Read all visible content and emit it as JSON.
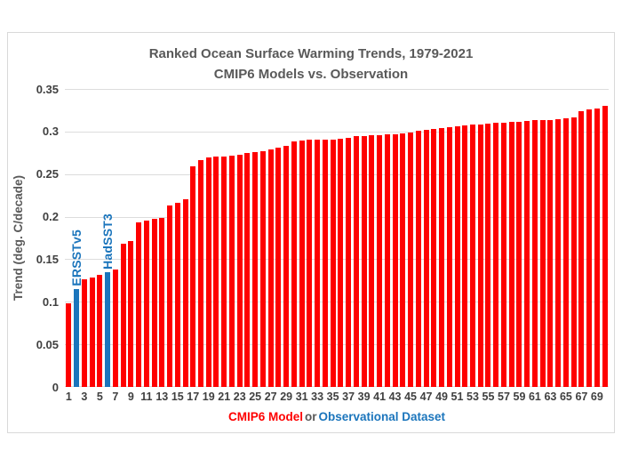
{
  "chart_data": {
    "type": "bar",
    "title": "Ranked Ocean Surface Warming Trends, 1979-2021",
    "subtitle": "CMIP6 Models vs. Observation",
    "ylabel": "Trend (deg. C/decade)",
    "xlabel": {
      "model_text": "CMIP6 Model",
      "connector_text": "or",
      "obs_text": "Observational Dataset"
    },
    "ylim": [
      0,
      0.35
    ],
    "yticks": [
      0,
      0.05,
      0.1,
      0.15,
      0.2,
      0.25,
      0.3,
      0.35
    ],
    "ytick_labels": [
      "0",
      "0.05",
      "0.1",
      "0.15",
      "0.2",
      "0.25",
      "0.3",
      "0.35"
    ],
    "xtick_labels": [
      "1",
      "3",
      "5",
      "7",
      "9",
      "11",
      "13",
      "15",
      "17",
      "19",
      "21",
      "23",
      "25",
      "27",
      "29",
      "31",
      "33",
      "35",
      "37",
      "39",
      "41",
      "43",
      "45",
      "47",
      "49",
      "51",
      "53",
      "55",
      "57",
      "59",
      "61",
      "63",
      "65",
      "67",
      "69"
    ],
    "grid": true,
    "legend_position": "none",
    "colors": {
      "model": "#fe0000",
      "observation": "#1b75bc",
      "gridline": "#dcdcdc",
      "title": "#595959",
      "ticks": "#404040",
      "connector": "#595959",
      "frame_border": "#d9d9d9"
    },
    "bars": [
      {
        "rank": 1,
        "value": 0.098,
        "kind": "model"
      },
      {
        "rank": 2,
        "value": 0.115,
        "kind": "observation",
        "label": "ERSSTv5"
      },
      {
        "rank": 3,
        "value": 0.126,
        "kind": "model"
      },
      {
        "rank": 4,
        "value": 0.129,
        "kind": "model"
      },
      {
        "rank": 5,
        "value": 0.132,
        "kind": "model"
      },
      {
        "rank": 6,
        "value": 0.135,
        "kind": "observation",
        "label": "HadSST3"
      },
      {
        "rank": 7,
        "value": 0.138,
        "kind": "model"
      },
      {
        "rank": 8,
        "value": 0.168,
        "kind": "model"
      },
      {
        "rank": 9,
        "value": 0.171,
        "kind": "model"
      },
      {
        "rank": 10,
        "value": 0.193,
        "kind": "model"
      },
      {
        "rank": 11,
        "value": 0.195,
        "kind": "model"
      },
      {
        "rank": 12,
        "value": 0.197,
        "kind": "model"
      },
      {
        "rank": 13,
        "value": 0.199,
        "kind": "model"
      },
      {
        "rank": 14,
        "value": 0.213,
        "kind": "model"
      },
      {
        "rank": 15,
        "value": 0.216,
        "kind": "model"
      },
      {
        "rank": 16,
        "value": 0.221,
        "kind": "model"
      },
      {
        "rank": 17,
        "value": 0.259,
        "kind": "model"
      },
      {
        "rank": 18,
        "value": 0.266,
        "kind": "model"
      },
      {
        "rank": 19,
        "value": 0.27,
        "kind": "model"
      },
      {
        "rank": 20,
        "value": 0.271,
        "kind": "model"
      },
      {
        "rank": 21,
        "value": 0.271,
        "kind": "model"
      },
      {
        "rank": 22,
        "value": 0.272,
        "kind": "model"
      },
      {
        "rank": 23,
        "value": 0.273,
        "kind": "model"
      },
      {
        "rank": 24,
        "value": 0.275,
        "kind": "model"
      },
      {
        "rank": 25,
        "value": 0.276,
        "kind": "model"
      },
      {
        "rank": 26,
        "value": 0.277,
        "kind": "model"
      },
      {
        "rank": 27,
        "value": 0.279,
        "kind": "model"
      },
      {
        "rank": 28,
        "value": 0.281,
        "kind": "model"
      },
      {
        "rank": 29,
        "value": 0.283,
        "kind": "model"
      },
      {
        "rank": 30,
        "value": 0.288,
        "kind": "model"
      },
      {
        "rank": 31,
        "value": 0.289,
        "kind": "model"
      },
      {
        "rank": 32,
        "value": 0.29,
        "kind": "model"
      },
      {
        "rank": 33,
        "value": 0.29,
        "kind": "model"
      },
      {
        "rank": 34,
        "value": 0.291,
        "kind": "model"
      },
      {
        "rank": 35,
        "value": 0.291,
        "kind": "model"
      },
      {
        "rank": 36,
        "value": 0.292,
        "kind": "model"
      },
      {
        "rank": 37,
        "value": 0.293,
        "kind": "model"
      },
      {
        "rank": 38,
        "value": 0.295,
        "kind": "model"
      },
      {
        "rank": 39,
        "value": 0.295,
        "kind": "model"
      },
      {
        "rank": 40,
        "value": 0.296,
        "kind": "model"
      },
      {
        "rank": 41,
        "value": 0.296,
        "kind": "model"
      },
      {
        "rank": 42,
        "value": 0.297,
        "kind": "model"
      },
      {
        "rank": 43,
        "value": 0.297,
        "kind": "model"
      },
      {
        "rank": 44,
        "value": 0.298,
        "kind": "model"
      },
      {
        "rank": 45,
        "value": 0.299,
        "kind": "model"
      },
      {
        "rank": 46,
        "value": 0.301,
        "kind": "model"
      },
      {
        "rank": 47,
        "value": 0.302,
        "kind": "model"
      },
      {
        "rank": 48,
        "value": 0.303,
        "kind": "model"
      },
      {
        "rank": 49,
        "value": 0.304,
        "kind": "model"
      },
      {
        "rank": 50,
        "value": 0.305,
        "kind": "model"
      },
      {
        "rank": 51,
        "value": 0.306,
        "kind": "model"
      },
      {
        "rank": 52,
        "value": 0.307,
        "kind": "model"
      },
      {
        "rank": 53,
        "value": 0.308,
        "kind": "model"
      },
      {
        "rank": 54,
        "value": 0.308,
        "kind": "model"
      },
      {
        "rank": 55,
        "value": 0.309,
        "kind": "model"
      },
      {
        "rank": 56,
        "value": 0.31,
        "kind": "model"
      },
      {
        "rank": 57,
        "value": 0.31,
        "kind": "model"
      },
      {
        "rank": 58,
        "value": 0.311,
        "kind": "model"
      },
      {
        "rank": 59,
        "value": 0.311,
        "kind": "model"
      },
      {
        "rank": 60,
        "value": 0.312,
        "kind": "model"
      },
      {
        "rank": 61,
        "value": 0.313,
        "kind": "model"
      },
      {
        "rank": 62,
        "value": 0.313,
        "kind": "model"
      },
      {
        "rank": 63,
        "value": 0.314,
        "kind": "model"
      },
      {
        "rank": 64,
        "value": 0.315,
        "kind": "model"
      },
      {
        "rank": 65,
        "value": 0.316,
        "kind": "model"
      },
      {
        "rank": 66,
        "value": 0.317,
        "kind": "model"
      },
      {
        "rank": 67,
        "value": 0.324,
        "kind": "model"
      },
      {
        "rank": 68,
        "value": 0.326,
        "kind": "model"
      },
      {
        "rank": 69,
        "value": 0.327,
        "kind": "model"
      },
      {
        "rank": 70,
        "value": 0.33,
        "kind": "model"
      }
    ]
  }
}
